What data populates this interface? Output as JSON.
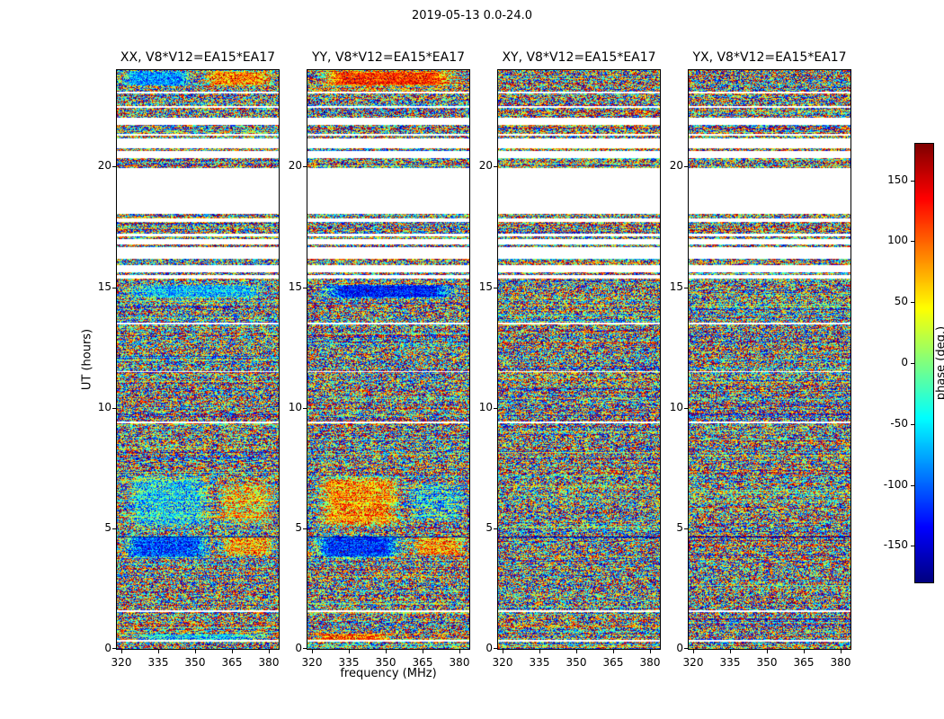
{
  "figure": {
    "title": "2019-05-13 0.0-24.0"
  },
  "panels": [
    {
      "title": "XX, V8*V12=EA15*EA17",
      "pol": "XX"
    },
    {
      "title": "YY, V8*V12=EA15*EA17",
      "pol": "YY"
    },
    {
      "title": "XY, V8*V12=EA15*EA17",
      "pol": "XY"
    },
    {
      "title": "YX, V8*V12=EA15*EA17",
      "pol": "YX"
    }
  ],
  "axes": {
    "x": {
      "label": "frequency (MHz)",
      "ticks": [
        320,
        335,
        350,
        365,
        380
      ],
      "range": [
        318,
        384
      ]
    },
    "y": {
      "label": "UT (hours)",
      "ticks": [
        0,
        5,
        10,
        15,
        20
      ],
      "range": [
        0,
        24
      ]
    }
  },
  "colorbar": {
    "label": "phase (deg.)",
    "ticks": [
      150,
      100,
      50,
      0,
      -50,
      -100,
      -150
    ],
    "range": [
      -180,
      180
    ],
    "colormap": "jet"
  },
  "chart_data": {
    "type": "heatmap",
    "title": "2019-05-13 0.0-24.0",
    "subplots": [
      "XX, V8*V12=EA15*EA17",
      "YY, V8*V12=EA15*EA17",
      "XY, V8*V12=EA15*EA17",
      "YX, V8*V12=EA15*EA17"
    ],
    "xlabel": "frequency (MHz)",
    "ylabel": "UT (hours)",
    "zlabel": "phase (deg.)",
    "x_range_mhz": [
      318,
      384
    ],
    "y_range_hours": [
      0,
      24
    ],
    "z_range_deg": [
      -180,
      180
    ],
    "colormap": "jet",
    "values_description": "interferometric visibility phase vs frequency and time for baseline V8*V12=EA15*EA17; mostly noise-like phases uniformly spanning -180..180 deg with horizontal streaking, white horizontal bands where no data, and smooth coherent phase patches in the XX and YY panels",
    "no_data_gaps_ut": [
      [
        23.1,
        23.02
      ],
      [
        22.52,
        22.42
      ],
      [
        22.03,
        21.73
      ],
      [
        21.35,
        21.27
      ],
      [
        21.17,
        20.76
      ],
      [
        20.65,
        20.34
      ],
      [
        19.94,
        18.04
      ],
      [
        17.85,
        17.7
      ],
      [
        17.22,
        17.1
      ],
      [
        16.99,
        16.78
      ],
      [
        16.66,
        16.18
      ],
      [
        15.92,
        15.62
      ],
      [
        15.5,
        15.36
      ],
      [
        13.52,
        13.47
      ],
      [
        11.52,
        11.47
      ],
      [
        9.42,
        9.37
      ],
      [
        1.62,
        1.53
      ],
      [
        0.36,
        0.31
      ]
    ],
    "dark_rows_ut": [
      4.64
    ],
    "structures": [
      {
        "panels": [
          "XX"
        ],
        "ut": [
          24.0,
          23.3
        ],
        "freq": [
          0.0,
          0.5
        ],
        "phase": -120,
        "strength": 0.7
      },
      {
        "panels": [
          "XX"
        ],
        "ut": [
          24.0,
          23.3
        ],
        "freq": [
          0.5,
          1.0
        ],
        "phase": 155,
        "strength": 0.6
      },
      {
        "panels": [
          "YY"
        ],
        "ut": [
          24.0,
          23.3
        ],
        "freq": [
          0.0,
          1.0
        ],
        "phase": 160,
        "strength": 0.75
      },
      {
        "panels": [
          "XX"
        ],
        "ut": [
          15.15,
          14.5
        ],
        "freq": [
          0.0,
          1.0
        ],
        "phase": -95,
        "strength": 0.65
      },
      {
        "panels": [
          "YY"
        ],
        "ut": [
          15.15,
          14.5
        ],
        "freq": [
          0.0,
          1.0
        ],
        "phase": -160,
        "strength": 0.8
      },
      {
        "panels": [
          "XX"
        ],
        "ut": [
          7.3,
          4.9
        ],
        "freq": [
          0.02,
          0.62
        ],
        "phase": -105,
        "strength": 0.5
      },
      {
        "panels": [
          "XX"
        ],
        "ut": [
          7.0,
          5.1
        ],
        "freq": [
          0.6,
          1.0
        ],
        "phase": 140,
        "strength": 0.4
      },
      {
        "panels": [
          "YY"
        ],
        "ut": [
          7.3,
          4.9
        ],
        "freq": [
          0.02,
          0.62
        ],
        "phase": 150,
        "strength": 0.55
      },
      {
        "panels": [
          "YY"
        ],
        "ut": [
          7.0,
          5.2
        ],
        "freq": [
          0.6,
          1.0
        ],
        "phase": -120,
        "strength": 0.35
      },
      {
        "panels": [
          "XX"
        ],
        "ut": [
          4.75,
          3.7
        ],
        "freq": [
          0.0,
          0.62
        ],
        "phase": -160,
        "strength": 0.7
      },
      {
        "panels": [
          "XX"
        ],
        "ut": [
          4.7,
          3.8
        ],
        "freq": [
          0.62,
          1.0
        ],
        "phase": 150,
        "strength": 0.5
      },
      {
        "panels": [
          "YY"
        ],
        "ut": [
          4.75,
          3.7
        ],
        "freq": [
          0.0,
          0.62
        ],
        "phase": -165,
        "strength": 0.75
      },
      {
        "panels": [
          "YY"
        ],
        "ut": [
          4.7,
          3.8
        ],
        "freq": [
          0.62,
          1.0
        ],
        "phase": 150,
        "strength": 0.5
      },
      {
        "panels": [
          "XX"
        ],
        "ut": [
          0.65,
          0.25
        ],
        "freq": [
          0.0,
          1.0
        ],
        "phase": -110,
        "strength": 0.55
      },
      {
        "panels": [
          "YY"
        ],
        "ut": [
          0.65,
          0.25
        ],
        "freq": [
          0.0,
          0.55
        ],
        "phase": 160,
        "strength": 0.6
      }
    ]
  }
}
